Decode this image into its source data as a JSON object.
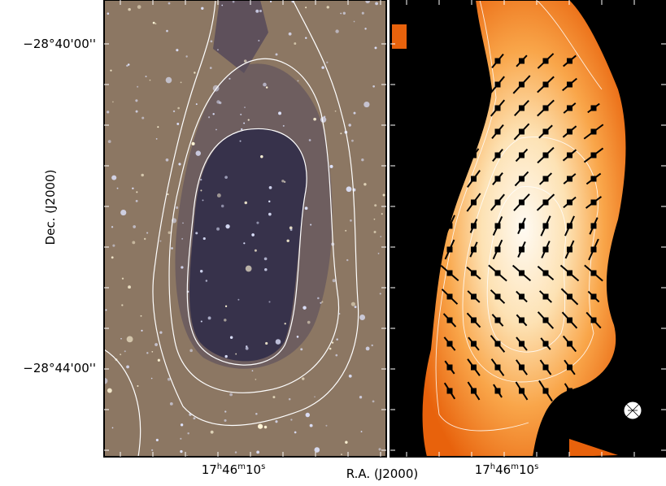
{
  "figure": {
    "dec_ticks": [
      "−28°40'00''",
      "−28°44'00''"
    ],
    "dec_label": "Dec. (J2000)",
    "ra_label": "R.A. (J2000)",
    "ra_ticks": [
      {
        "parts": [
          "17",
          "h",
          "46",
          "m",
          "10",
          "s"
        ]
      },
      {
        "parts": [
          "17",
          "h",
          "46",
          "m",
          "10",
          "s"
        ]
      }
    ]
  }
}
